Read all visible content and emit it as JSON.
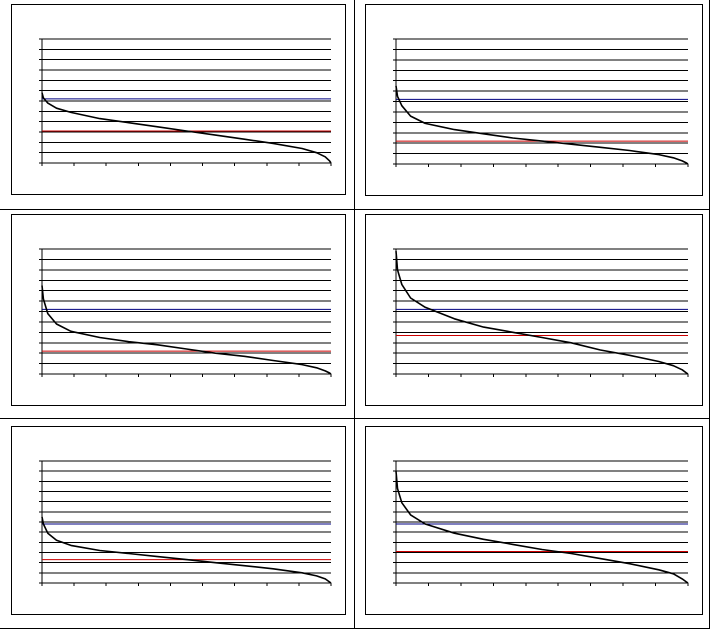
{
  "colors": {
    "curve": "#000000",
    "gridline": "#000000",
    "threshold_red": "#cc0000",
    "threshold_blue": "#000080"
  },
  "chart_data": [
    {
      "type": "line",
      "grid": true,
      "ylim": [
        0,
        12
      ],
      "xlim": [
        0,
        1
      ],
      "curve_x": [
        0,
        0.005,
        0.02,
        0.05,
        0.1,
        0.2,
        0.3,
        0.4,
        0.5,
        0.6,
        0.7,
        0.8,
        0.9,
        0.95,
        0.98,
        0.995,
        1.0
      ],
      "curve_y": [
        6.8,
        6.3,
        5.8,
        5.3,
        4.9,
        4.3,
        3.9,
        3.5,
        3.1,
        2.7,
        2.3,
        1.9,
        1.4,
        1.0,
        0.6,
        0.2,
        0.0
      ],
      "red_line": 3.1,
      "blue_line": 6.2
    },
    {
      "type": "line",
      "grid": true,
      "ylim": [
        0,
        12
      ],
      "xlim": [
        0,
        1
      ],
      "curve_x": [
        0,
        0.005,
        0.02,
        0.05,
        0.1,
        0.2,
        0.3,
        0.4,
        0.5,
        0.6,
        0.7,
        0.8,
        0.9,
        0.95,
        0.98,
        0.995,
        1.0
      ],
      "curve_y": [
        7.5,
        6.5,
        5.6,
        4.6,
        3.9,
        3.3,
        2.9,
        2.5,
        2.2,
        1.9,
        1.6,
        1.3,
        0.9,
        0.6,
        0.3,
        0.1,
        0.0
      ],
      "red_line": 2.2,
      "blue_line": 6.2
    },
    {
      "type": "line",
      "grid": true,
      "ylim": [
        0,
        12
      ],
      "xlim": [
        0,
        1
      ],
      "curve_x": [
        0,
        0.005,
        0.02,
        0.05,
        0.1,
        0.2,
        0.3,
        0.4,
        0.5,
        0.6,
        0.7,
        0.8,
        0.9,
        0.95,
        0.98,
        0.995,
        1.0
      ],
      "curve_y": [
        8.5,
        7.2,
        5.8,
        4.8,
        4.1,
        3.5,
        3.1,
        2.8,
        2.4,
        2.0,
        1.7,
        1.3,
        0.9,
        0.6,
        0.3,
        0.1,
        0.0
      ],
      "red_line": 2.2,
      "blue_line": 6.2
    },
    {
      "type": "line",
      "grid": true,
      "ylim": [
        0,
        12
      ],
      "xlim": [
        0,
        1
      ],
      "curve_x": [
        0,
        0.005,
        0.02,
        0.05,
        0.1,
        0.2,
        0.3,
        0.4,
        0.5,
        0.6,
        0.7,
        0.8,
        0.9,
        0.95,
        0.98,
        0.995,
        1.0
      ],
      "curve_y": [
        11.8,
        10.0,
        8.6,
        7.3,
        6.4,
        5.3,
        4.5,
        4.0,
        3.5,
        3.0,
        2.3,
        1.8,
        1.2,
        0.8,
        0.4,
        0.1,
        0.0
      ],
      "red_line": 3.7,
      "blue_line": 6.2
    },
    {
      "type": "line",
      "grid": true,
      "ylim": [
        0,
        12
      ],
      "xlim": [
        0,
        1
      ],
      "curve_x": [
        0,
        0.005,
        0.02,
        0.05,
        0.1,
        0.2,
        0.3,
        0.4,
        0.5,
        0.6,
        0.7,
        0.8,
        0.9,
        0.95,
        0.98,
        0.995,
        1.0
      ],
      "curve_y": [
        6.5,
        5.8,
        4.9,
        4.2,
        3.7,
        3.2,
        2.9,
        2.6,
        2.3,
        2.0,
        1.7,
        1.4,
        1.0,
        0.7,
        0.4,
        0.1,
        0.0
      ],
      "red_line": 2.3,
      "blue_line": 5.8
    },
    {
      "type": "line",
      "grid": true,
      "ylim": [
        0,
        12
      ],
      "xlim": [
        0,
        1
      ],
      "curve_x": [
        0,
        0.005,
        0.02,
        0.05,
        0.1,
        0.2,
        0.3,
        0.4,
        0.5,
        0.6,
        0.7,
        0.8,
        0.9,
        0.95,
        0.98,
        0.995,
        1.0
      ],
      "curve_y": [
        11.0,
        9.3,
        7.9,
        6.7,
        5.8,
        4.9,
        4.3,
        3.8,
        3.3,
        2.9,
        2.4,
        1.9,
        1.3,
        0.9,
        0.4,
        0.1,
        0.0
      ],
      "red_line": 3.1,
      "blue_line": 5.8
    }
  ]
}
